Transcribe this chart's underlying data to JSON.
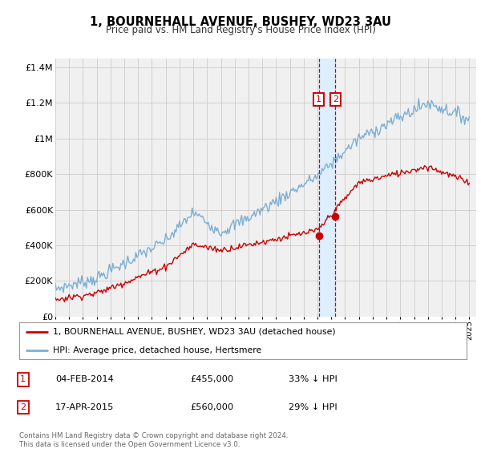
{
  "title": "1, BOURNEHALL AVENUE, BUSHEY, WD23 3AU",
  "subtitle": "Price paid vs. HM Land Registry's House Price Index (HPI)",
  "legend_entries": [
    "1, BOURNEHALL AVENUE, BUSHEY, WD23 3AU (detached house)",
    "HPI: Average price, detached house, Hertsmere"
  ],
  "sale1_date": "04-FEB-2014",
  "sale1_price": "£455,000",
  "sale1_hpi": "33% ↓ HPI",
  "sale1_year": 2014.09,
  "sale1_value": 455000,
  "sale2_date": "17-APR-2015",
  "sale2_price": "£560,000",
  "sale2_hpi": "29% ↓ HPI",
  "sale2_year": 2015.29,
  "sale2_value": 560000,
  "red_color": "#cc0000",
  "blue_color": "#7bafd4",
  "shaded_color": "#ddeeff",
  "grid_color": "#cccccc",
  "background_color": "#f0f0f0",
  "ylim": [
    0,
    1450000
  ],
  "xlim_start": 1995.0,
  "xlim_end": 2025.5,
  "footer": "Contains HM Land Registry data © Crown copyright and database right 2024.\nThis data is licensed under the Open Government Licence v3.0.",
  "ytick_labels": [
    "£0",
    "£200K",
    "£400K",
    "£600K",
    "£800K",
    "£1M",
    "£1.2M",
    "£1.4M"
  ],
  "ytick_values": [
    0,
    200000,
    400000,
    600000,
    800000,
    1000000,
    1200000,
    1400000
  ]
}
